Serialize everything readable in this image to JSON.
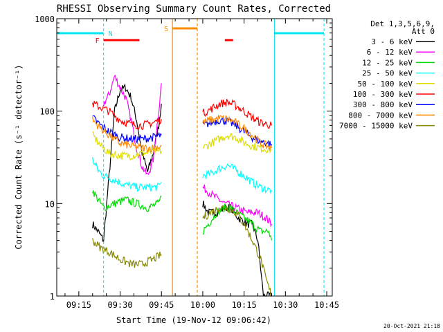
{
  "chart_data": {
    "type": "line",
    "title": "RHESSI Observing Summary Count Rates, Corrected",
    "xlabel": "Start Time (19-Nov-12 09:06:42)",
    "ylabel": "Corrected Count Rate (s⁻¹ detector⁻¹)",
    "yscale": "log",
    "ylim": [
      1,
      1000
    ],
    "xlim": [
      "09:07",
      "10:47"
    ],
    "x_ticks": [
      "09:15",
      "09:30",
      "09:45",
      "10:00",
      "10:15",
      "10:30",
      "10:45"
    ],
    "y_ticks": [
      "1",
      "10",
      "100",
      "1000"
    ],
    "grid": false,
    "legend": {
      "placement": "top-right",
      "header": [
        "Det 1,3,5,6,9,",
        "Att 0"
      ],
      "entries": [
        {
          "label": "3 - 6 keV",
          "color": "#000000"
        },
        {
          "label": "6 - 12 keV",
          "color": "#ff00ff"
        },
        {
          "label": "12 - 25 keV",
          "color": "#00dd00"
        },
        {
          "label": "25 - 50 keV",
          "color": "#00ffff"
        },
        {
          "label": "50 - 100 keV",
          "color": "#dddd00"
        },
        {
          "label": "100 - 300 keV",
          "color": "#ff0000"
        },
        {
          "label": "300 - 800 keV",
          "color": "#0000ff"
        },
        {
          "label": "800 - 7000 keV",
          "color": "#ff8800"
        },
        {
          "label": "7000 - 15000 keV",
          "color": "#888800"
        }
      ]
    },
    "intervals": [
      {
        "label": "N",
        "color": "#00e5ee",
        "spans": [
          [
            "09:07",
            "09:24"
          ],
          [
            "10:26",
            "10:44"
          ]
        ]
      },
      {
        "label": "F",
        "color": "#ff0000",
        "spans": [
          [
            "09:24",
            "09:37"
          ],
          [
            "10:08",
            "10:11"
          ]
        ]
      },
      {
        "label": "S",
        "color": "#ff8800",
        "spans": [
          [
            "09:49",
            "09:58"
          ]
        ]
      }
    ],
    "series": [
      {
        "label": "3 - 6 keV",
        "color": "#000000",
        "segments": [
          [
            [
              "09:20",
              6
            ],
            [
              "09:22",
              5
            ],
            [
              "09:24",
              4
            ],
            [
              "09:26",
              20
            ],
            [
              "09:28",
              100
            ],
            [
              "09:30",
              170
            ],
            [
              "09:32",
              180
            ],
            [
              "09:34",
              140
            ],
            [
              "09:36",
              80
            ],
            [
              "09:38",
              35
            ],
            [
              "09:40",
              22
            ],
            [
              "09:42",
              35
            ],
            [
              "09:44",
              70
            ],
            [
              "09:45",
              120
            ]
          ],
          [
            [
              "10:00",
              10
            ],
            [
              "10:02",
              8
            ],
            [
              "10:05",
              8
            ],
            [
              "10:08",
              9
            ],
            [
              "10:10",
              9
            ],
            [
              "10:13",
              7
            ],
            [
              "10:16",
              6
            ],
            [
              "10:18",
              6
            ],
            [
              "10:20",
              4
            ],
            [
              "10:21",
              2
            ],
            [
              "10:22",
              1
            ],
            [
              "10:25",
              1
            ]
          ]
        ]
      },
      {
        "label": "6 - 12 keV",
        "color": "#ff00ff",
        "segments": [
          [
            [
              "09:24",
              120
            ],
            [
              "09:26",
              150
            ],
            [
              "09:28",
              240
            ],
            [
              "09:30",
              180
            ],
            [
              "09:32",
              140
            ],
            [
              "09:34",
              80
            ],
            [
              "09:36",
              40
            ],
            [
              "09:38",
              25
            ],
            [
              "09:40",
              20
            ],
            [
              "09:42",
              30
            ],
            [
              "09:44",
              100
            ],
            [
              "09:45",
              200
            ]
          ],
          [
            [
              "10:00",
              15
            ],
            [
              "10:04",
              12
            ],
            [
              "10:08",
              10
            ],
            [
              "10:12",
              9
            ],
            [
              "10:16",
              8
            ],
            [
              "10:18",
              8
            ],
            [
              "10:20",
              8
            ],
            [
              "10:23",
              7
            ],
            [
              "10:25",
              6
            ]
          ]
        ]
      },
      {
        "label": "12 - 25 keV",
        "color": "#00dd00",
        "segments": [
          [
            [
              "09:20",
              14
            ],
            [
              "09:22",
              11
            ],
            [
              "09:24",
              9
            ],
            [
              "09:28",
              10
            ],
            [
              "09:32",
              11
            ],
            [
              "09:36",
              10
            ],
            [
              "09:40",
              9
            ],
            [
              "09:44",
              10
            ],
            [
              "09:45",
              12
            ]
          ],
          [
            [
              "10:00",
              5
            ],
            [
              "10:02",
              6
            ],
            [
              "10:05",
              8
            ],
            [
              "10:08",
              9
            ],
            [
              "10:10",
              9
            ],
            [
              "10:12",
              8
            ],
            [
              "10:15",
              7
            ],
            [
              "10:18",
              6
            ],
            [
              "10:21",
              5
            ],
            [
              "10:24",
              5
            ],
            [
              "10:25",
              4
            ]
          ]
        ]
      },
      {
        "label": "25 - 50 keV",
        "color": "#00ffff",
        "segments": [
          [
            [
              "09:20",
              30
            ],
            [
              "09:22",
              23
            ],
            [
              "09:24",
              20
            ],
            [
              "09:28",
              18
            ],
            [
              "09:32",
              16
            ],
            [
              "09:36",
              15
            ],
            [
              "09:40",
              15
            ],
            [
              "09:44",
              15
            ],
            [
              "09:45",
              17
            ]
          ],
          [
            [
              "10:00",
              20
            ],
            [
              "10:03",
              21
            ],
            [
              "10:06",
              24
            ],
            [
              "10:09",
              26
            ],
            [
              "10:12",
              23
            ],
            [
              "10:15",
              20
            ],
            [
              "10:18",
              17
            ],
            [
              "10:21",
              15
            ],
            [
              "10:24",
              14
            ],
            [
              "10:25",
              14
            ]
          ]
        ]
      },
      {
        "label": "50 - 100 keV",
        "color": "#dddd00",
        "segments": [
          [
            [
              "09:20",
              55
            ],
            [
              "09:23",
              42
            ],
            [
              "09:26",
              35
            ],
            [
              "09:30",
              33
            ],
            [
              "09:34",
              33
            ],
            [
              "09:38",
              35
            ],
            [
              "09:42",
              36
            ],
            [
              "09:45",
              37
            ]
          ],
          [
            [
              "10:00",
              40
            ],
            [
              "10:03",
              45
            ],
            [
              "10:06",
              50
            ],
            [
              "10:09",
              55
            ],
            [
              "10:12",
              52
            ],
            [
              "10:15",
              46
            ],
            [
              "10:18",
              42
            ],
            [
              "10:21",
              40
            ],
            [
              "10:25",
              38
            ]
          ]
        ]
      },
      {
        "label": "100 - 300 keV",
        "color": "#ff0000",
        "segments": [
          [
            [
              "09:20",
              120
            ],
            [
              "09:23",
              110
            ],
            [
              "09:26",
              100
            ],
            [
              "09:30",
              80
            ],
            [
              "09:34",
              72
            ],
            [
              "09:38",
              70
            ],
            [
              "09:42",
              75
            ],
            [
              "09:45",
              82
            ]
          ],
          [
            [
              "10:00",
              95
            ],
            [
              "10:03",
              105
            ],
            [
              "10:06",
              120
            ],
            [
              "10:09",
              125
            ],
            [
              "10:12",
              115
            ],
            [
              "10:15",
              100
            ],
            [
              "10:18",
              85
            ],
            [
              "10:21",
              75
            ],
            [
              "10:25",
              70
            ]
          ]
        ]
      },
      {
        "label": "300 - 800 keV",
        "color": "#0000ff",
        "segments": [
          [
            [
              "09:20",
              85
            ],
            [
              "09:23",
              70
            ],
            [
              "09:26",
              60
            ],
            [
              "09:30",
              52
            ],
            [
              "09:34",
              50
            ],
            [
              "09:38",
              50
            ],
            [
              "09:42",
              52
            ],
            [
              "09:45",
              55
            ]
          ],
          [
            [
              "10:00",
              70
            ],
            [
              "10:03",
              75
            ],
            [
              "10:06",
              80
            ],
            [
              "10:09",
              78
            ],
            [
              "10:12",
              70
            ],
            [
              "10:15",
              60
            ],
            [
              "10:18",
              52
            ],
            [
              "10:21",
              47
            ],
            [
              "10:25",
              44
            ]
          ]
        ]
      },
      {
        "label": "800 - 7000 keV",
        "color": "#ff8800",
        "segments": [
          [
            [
              "09:20",
              80
            ],
            [
              "09:23",
              65
            ],
            [
              "09:26",
              55
            ],
            [
              "09:30",
              45
            ],
            [
              "09:34",
              42
            ],
            [
              "09:38",
              40
            ],
            [
              "09:42",
              40
            ],
            [
              "09:45",
              42
            ]
          ],
          [
            [
              "10:00",
              75
            ],
            [
              "10:03",
              80
            ],
            [
              "10:06",
              84
            ],
            [
              "10:09",
              82
            ],
            [
              "10:12",
              75
            ],
            [
              "10:15",
              65
            ],
            [
              "10:18",
              55
            ],
            [
              "10:21",
              45
            ],
            [
              "10:25",
              40
            ]
          ]
        ]
      },
      {
        "label": "7000 - 15000 keV",
        "color": "#888800",
        "segments": [
          [
            [
              "09:20",
              4
            ],
            [
              "09:23",
              3.3
            ],
            [
              "09:26",
              3
            ],
            [
              "09:30",
              2.5
            ],
            [
              "09:34",
              2.2
            ],
            [
              "09:38",
              2.2
            ],
            [
              "09:42",
              2.5
            ],
            [
              "09:45",
              2.8
            ]
          ],
          [
            [
              "10:00",
              7
            ],
            [
              "10:03",
              8
            ],
            [
              "10:06",
              9
            ],
            [
              "10:09",
              9
            ],
            [
              "10:12",
              8
            ],
            [
              "10:15",
              6
            ],
            [
              "10:18",
              4
            ],
            [
              "10:21",
              2.5
            ],
            [
              "10:23",
              1.5
            ],
            [
              "10:25",
              1
            ]
          ]
        ]
      }
    ]
  },
  "footer": {
    "timestamp": "20-Oct-2021 21:18"
  }
}
